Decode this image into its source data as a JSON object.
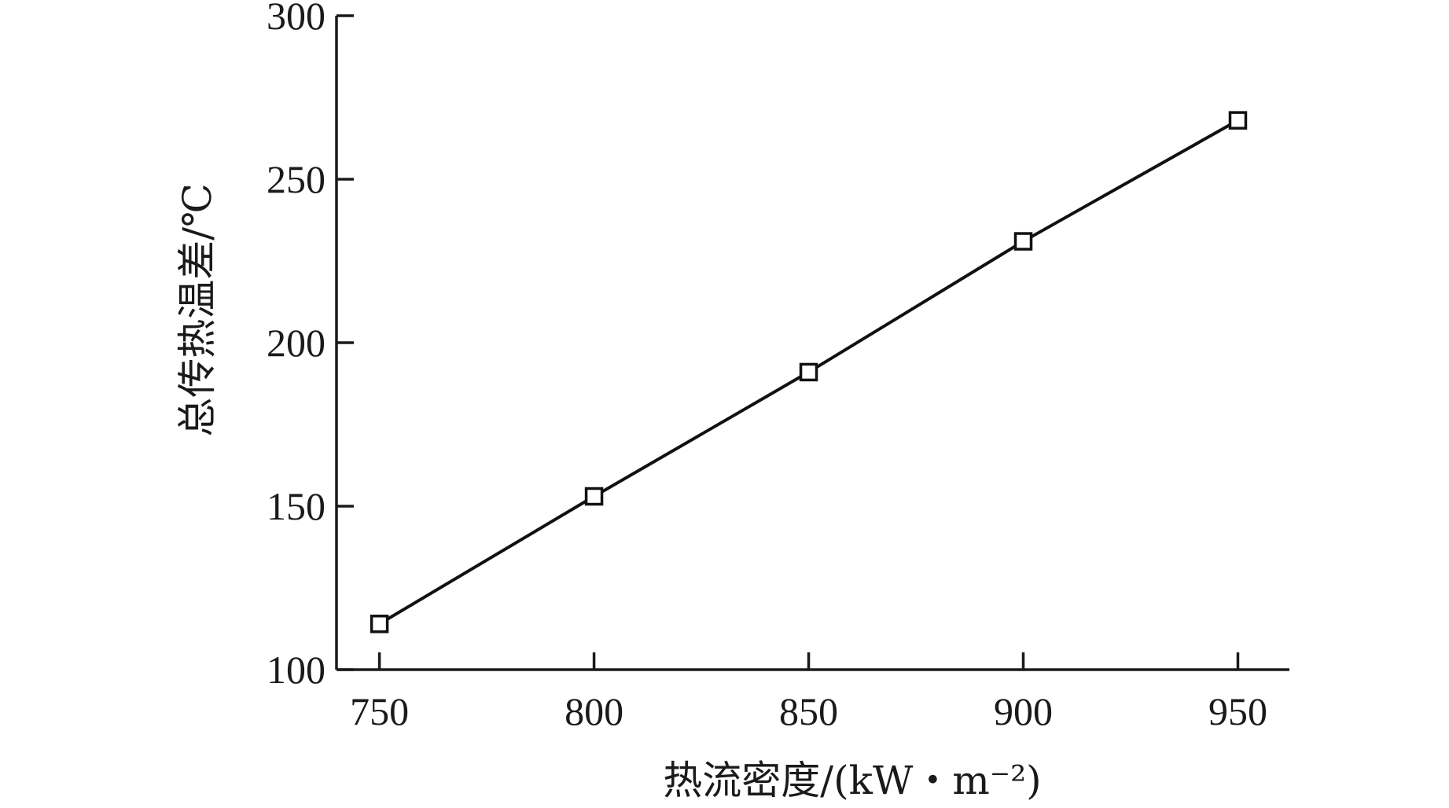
{
  "chart_data": {
    "type": "line",
    "xlabel": "热流密度/(kW・m⁻²)",
    "ylabel": "总传热温差/℃",
    "xlim": [
      740,
      962
    ],
    "ylim": [
      100,
      300
    ],
    "x_ticks": [
      750,
      800,
      850,
      900,
      950
    ],
    "y_ticks": [
      100,
      150,
      200,
      250,
      300
    ],
    "grid": false,
    "series": [
      {
        "marker": "open-square",
        "color": "#111111",
        "x": [
          750,
          800,
          850,
          900,
          950
        ],
        "y": [
          114,
          153,
          191,
          231,
          268
        ]
      }
    ]
  }
}
